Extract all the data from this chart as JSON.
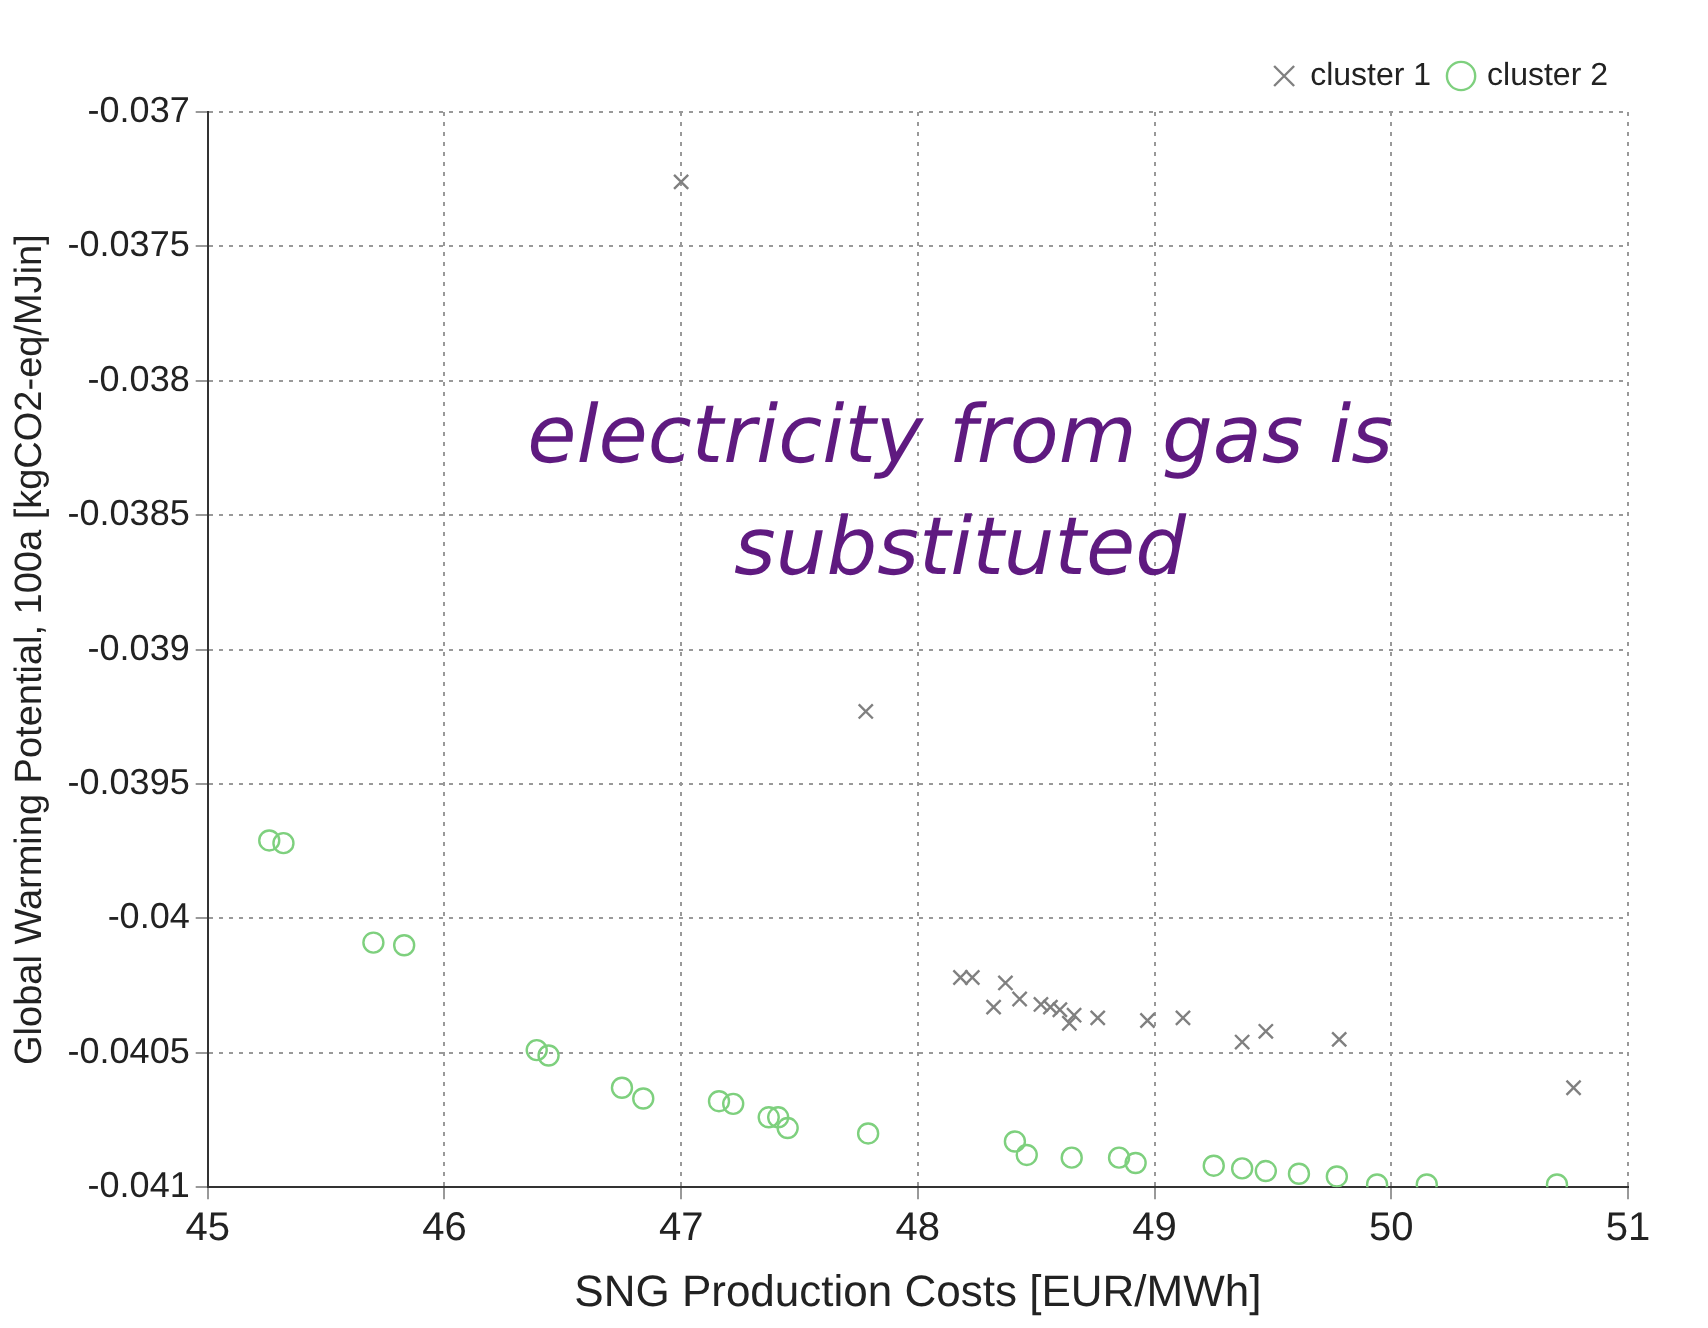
{
  "chart_data": {
    "type": "scatter",
    "xlabel": "SNG Production Costs [EUR/MWh]",
    "ylabel": "Global Warming Potential, 100a [kgCO2-eq/MJin]",
    "xlim": [
      45,
      51
    ],
    "xticks": [
      45,
      46,
      47,
      48,
      49,
      50,
      51
    ],
    "ylim": [
      -0.041,
      -0.037
    ],
    "yticks": [
      -0.041,
      -0.0405,
      -0.04,
      -0.0395,
      -0.039,
      -0.0385,
      -0.038,
      -0.0375,
      -0.037
    ],
    "grid": true,
    "legend": "top right",
    "annotations": [
      "electricity from gas is substituted"
    ],
    "series": [
      {
        "name": "cluster 1",
        "color": "#808080",
        "marker": "cross",
        "x": [
          47.0,
          47.78,
          48.18,
          48.23,
          48.37,
          48.32,
          48.43,
          48.52,
          48.56,
          48.6,
          48.64,
          48.66,
          48.76,
          48.97,
          49.12,
          49.37,
          49.47,
          49.78,
          50.77
        ],
        "values": [
          -0.03726,
          -0.03923,
          -0.04022,
          -0.04022,
          -0.04024,
          -0.04033,
          -0.0403,
          -0.04032,
          -0.04033,
          -0.04034,
          -0.04039,
          -0.04036,
          -0.04037,
          -0.04038,
          -0.04037,
          -0.04046,
          -0.04042,
          -0.04045,
          -0.04063
        ]
      },
      {
        "name": "cluster 2",
        "color": "#7ed07e",
        "marker": "circle",
        "x": [
          45.26,
          45.32,
          45.7,
          45.83,
          46.39,
          46.44,
          46.75,
          46.84,
          47.16,
          47.22,
          47.37,
          47.41,
          47.45,
          47.79,
          48.41,
          48.46,
          48.65,
          48.85,
          48.92,
          49.25,
          49.37,
          49.47,
          49.61,
          49.77,
          49.94,
          50.15,
          50.7
        ],
        "values": [
          -0.03971,
          -0.03972,
          -0.04009,
          -0.0401,
          -0.04049,
          -0.04051,
          -0.04063,
          -0.04067,
          -0.04068,
          -0.04069,
          -0.04074,
          -0.04074,
          -0.04078,
          -0.0408,
          -0.04083,
          -0.04088,
          -0.04089,
          -0.04089,
          -0.04091,
          -0.04092,
          -0.04093,
          -0.04094,
          -0.04095,
          -0.04096,
          -0.04099,
          -0.04099,
          -0.04099
        ]
      }
    ]
  }
}
